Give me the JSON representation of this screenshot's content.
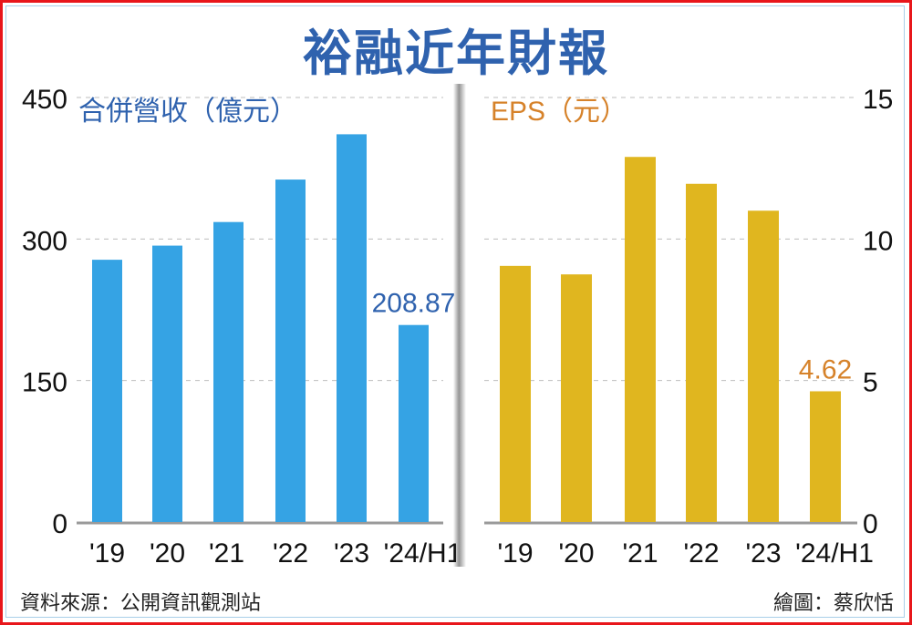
{
  "title": "裕融近年財報",
  "footer": {
    "source": "資料來源：公開資訊觀測站",
    "credit": "繪圖：蔡欣恬"
  },
  "colors": {
    "revenue": "#35a3e4",
    "revenue_label": "#2f62ae",
    "eps": "#e0b61f",
    "eps_label": "#d6822a",
    "title": "#2f62ae"
  },
  "chart_data": [
    {
      "type": "bar",
      "title": "合併營收（億元）",
      "categories": [
        "'19",
        "'20",
        "'21",
        "'22",
        "'23",
        "'24/H1"
      ],
      "values": [
        278,
        293,
        318,
        363,
        411,
        208.87
      ],
      "data_labels": [
        null,
        null,
        null,
        null,
        null,
        "208.87"
      ],
      "ylim": [
        0,
        450
      ],
      "yticks": [
        0,
        150,
        300,
        450
      ],
      "ytick_labels": [
        "0",
        "150",
        "300",
        "450"
      ],
      "yaxis_side": "left",
      "grid": true,
      "xlabel": "",
      "ylabel": ""
    },
    {
      "type": "bar",
      "title": "EPS（元）",
      "categories": [
        "'19",
        "'20",
        "'21",
        "'22",
        "'23",
        "'24/H1"
      ],
      "values": [
        9.05,
        8.75,
        12.9,
        11.95,
        11.0,
        4.62
      ],
      "data_labels": [
        null,
        null,
        null,
        null,
        null,
        "4.62"
      ],
      "ylim": [
        0,
        15
      ],
      "yticks": [
        0,
        5,
        10,
        15
      ],
      "ytick_labels": [
        "0",
        "5",
        "10",
        "15"
      ],
      "yaxis_side": "right",
      "grid": true,
      "xlabel": "",
      "ylabel": ""
    }
  ]
}
